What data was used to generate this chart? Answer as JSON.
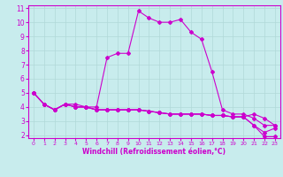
{
  "xlabel": "Windchill (Refroidissement éolien,°C)",
  "xlim": [
    -0.5,
    23.5
  ],
  "ylim": [
    1.8,
    11.2
  ],
  "xticks": [
    0,
    1,
    2,
    3,
    4,
    5,
    6,
    7,
    8,
    9,
    10,
    11,
    12,
    13,
    14,
    15,
    16,
    17,
    18,
    19,
    20,
    21,
    22,
    23
  ],
  "yticks": [
    2,
    3,
    4,
    5,
    6,
    7,
    8,
    9,
    10,
    11
  ],
  "bg_color": "#c8eced",
  "line_color": "#cc00cc",
  "grid_color": "#b0d8d8",
  "lines": [
    [
      5.0,
      4.2,
      3.8,
      4.2,
      4.2,
      4.0,
      4.0,
      7.5,
      7.8,
      7.8,
      10.8,
      10.3,
      10.0,
      10.0,
      10.2,
      9.3,
      8.8,
      6.5,
      3.8,
      3.5,
      3.5,
      3.2,
      2.7,
      2.7
    ],
    [
      5.0,
      4.2,
      3.8,
      4.2,
      4.0,
      4.0,
      3.8,
      3.8,
      3.8,
      3.8,
      3.8,
      3.7,
      3.6,
      3.5,
      3.5,
      3.5,
      3.5,
      3.4,
      3.4,
      3.3,
      3.3,
      3.5,
      3.2,
      2.7
    ],
    [
      5.0,
      4.2,
      3.8,
      4.2,
      4.0,
      4.0,
      3.8,
      3.8,
      3.8,
      3.8,
      3.8,
      3.7,
      3.6,
      3.5,
      3.5,
      3.5,
      3.5,
      3.4,
      3.4,
      3.3,
      3.3,
      2.7,
      2.2,
      2.5
    ],
    [
      5.0,
      4.2,
      3.8,
      4.2,
      4.0,
      4.0,
      3.8,
      3.8,
      3.8,
      3.8,
      3.8,
      3.7,
      3.6,
      3.5,
      3.5,
      3.5,
      3.5,
      3.4,
      3.4,
      3.3,
      3.3,
      2.7,
      1.9,
      1.9
    ]
  ],
  "xlabel_fontsize": 5.5,
  "tick_fontsize_x": 4.5,
  "tick_fontsize_y": 5.5,
  "linewidth": 0.8,
  "markersize": 2.0
}
